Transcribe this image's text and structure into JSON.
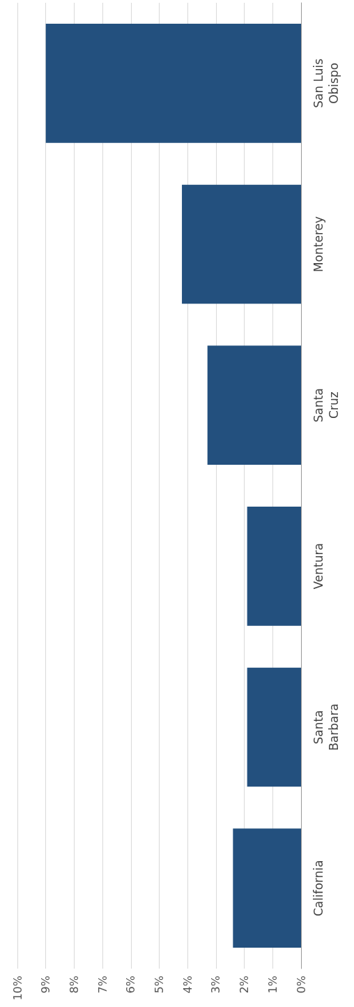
{
  "chart_data": {
    "type": "bar",
    "orientation": "horizontal",
    "categories": [
      "San Luis Obispo",
      "Monterey",
      "Santa Cruz",
      "Ventura",
      "Santa Barbara",
      "California"
    ],
    "values": [
      9.0,
      4.2,
      3.3,
      1.9,
      1.9,
      2.4
    ],
    "color": "#23507e",
    "xlim": [
      10,
      0
    ],
    "xticks": [
      {
        "value": 0,
        "label": "0%"
      },
      {
        "value": 1,
        "label": "1%"
      },
      {
        "value": 2,
        "label": "2%"
      },
      {
        "value": 3,
        "label": "3%"
      },
      {
        "value": 4,
        "label": "4%"
      },
      {
        "value": 5,
        "label": "5%"
      },
      {
        "value": 6,
        "label": "6%"
      },
      {
        "value": 7,
        "label": "7%"
      },
      {
        "value": 8,
        "label": "8%"
      },
      {
        "value": 9,
        "label": "9%"
      },
      {
        "value": 10,
        "label": "10%"
      }
    ],
    "grid": "x"
  }
}
